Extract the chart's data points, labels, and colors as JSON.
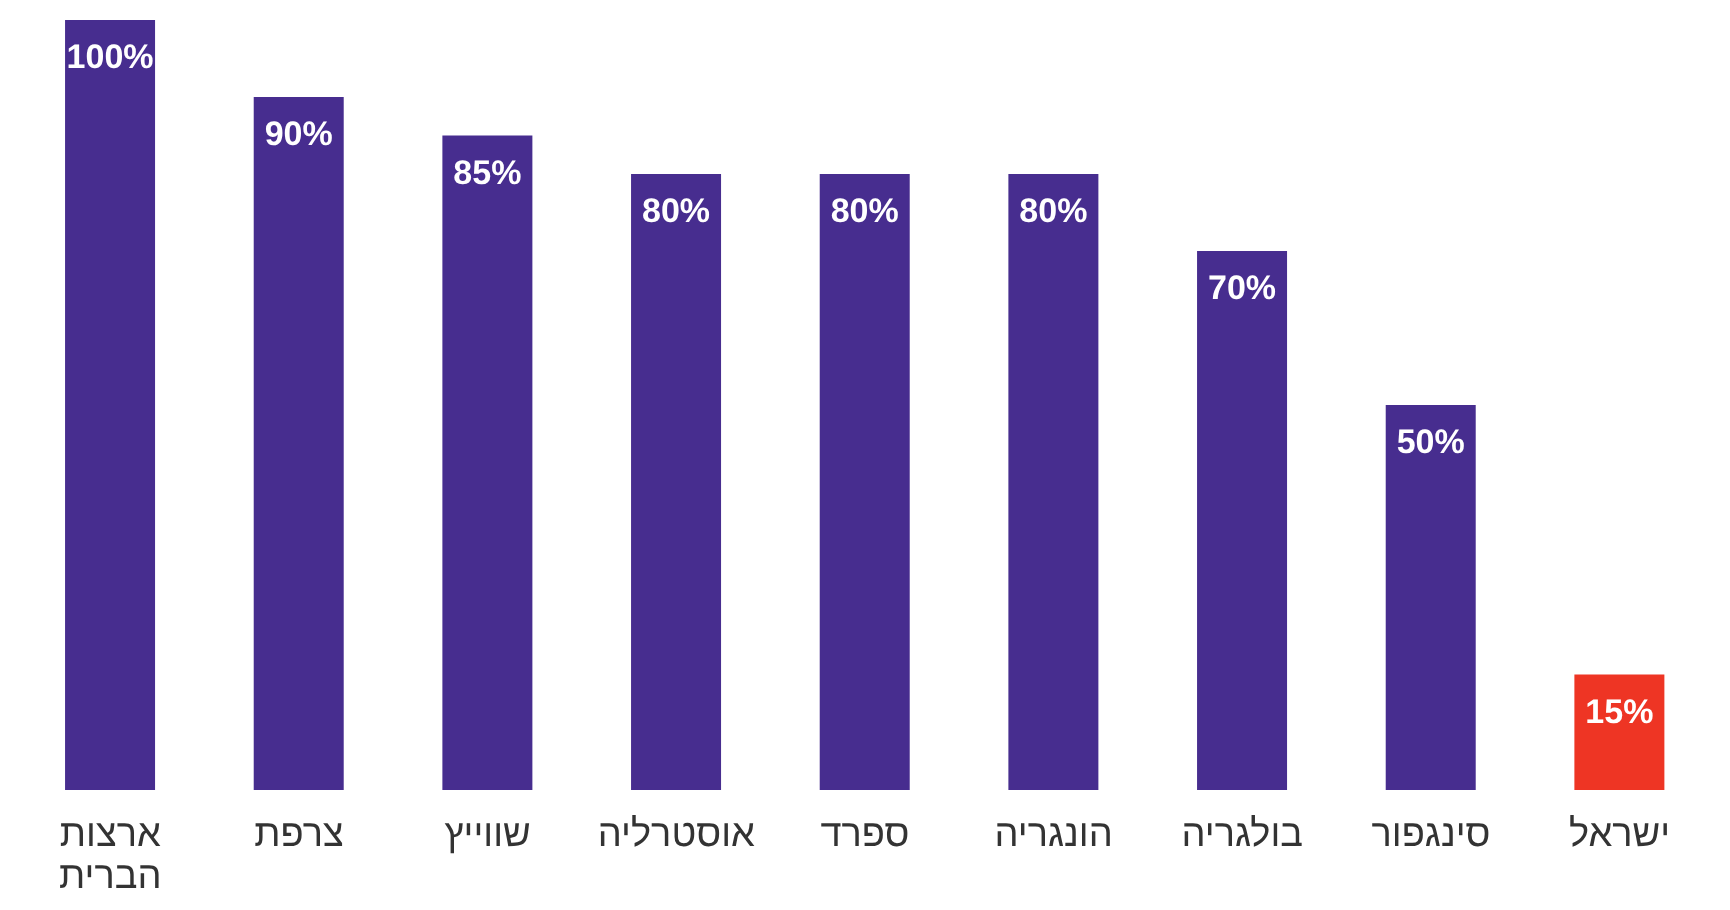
{
  "chart_data": {
    "type": "bar",
    "categories": [
      "ארצות הברית",
      "צרפת",
      "שווייץ",
      "אוסטרליה",
      "ספרד",
      "הונגריה",
      "בולגריה",
      "סינגפור",
      "ישראל"
    ],
    "values": [
      100,
      90,
      85,
      80,
      80,
      80,
      70,
      50,
      15
    ],
    "colors": [
      "#472d8f",
      "#472d8f",
      "#472d8f",
      "#472d8f",
      "#472d8f",
      "#472d8f",
      "#472d8f",
      "#472d8f",
      "#ee3524"
    ],
    "value_labels": [
      "100%",
      "90%",
      "85%",
      "80%",
      "80%",
      "80%",
      "70%",
      "50%",
      "15%"
    ]
  }
}
